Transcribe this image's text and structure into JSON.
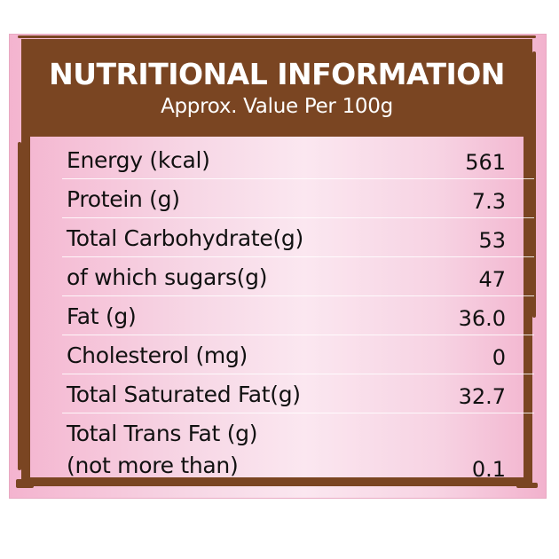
{
  "label": {
    "title": "NUTRITIONAL INFORMATION",
    "subtitle": "Approx. Value Per 100g",
    "rows": [
      {
        "name": "Energy (kcal)",
        "value": "561"
      },
      {
        "name": "Protein (g)",
        "value": "7.3"
      },
      {
        "name": "Total Carbohydrate(g)",
        "value": "53"
      },
      {
        "name": "of which sugars(g)",
        "value": "47"
      },
      {
        "name": "Fat (g)",
        "value": "36.0"
      },
      {
        "name": "Cholesterol (mg)",
        "value": "0"
      },
      {
        "name": "Total Saturated Fat(g)",
        "value": "32.7"
      }
    ],
    "last_row": {
      "name_line1": "Total Trans Fat (g)",
      "name_line2": "(not more than)",
      "value": "0.1"
    }
  },
  "colors": {
    "frame_brown": "#7a4522",
    "panel_pink": "#f7d8e6",
    "text": "#111111",
    "header_text": "#ffffff"
  }
}
